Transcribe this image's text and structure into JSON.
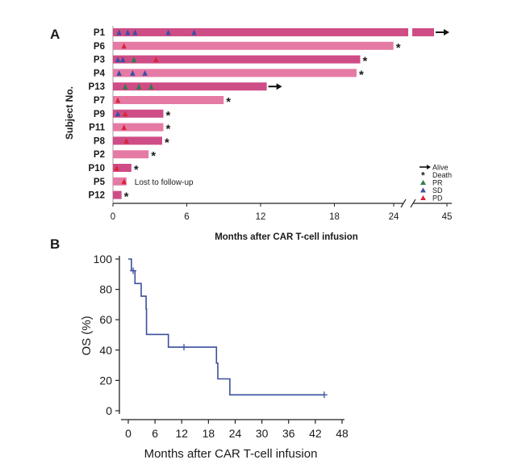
{
  "chart_data": [
    {
      "panel_label": "A",
      "type": "bar",
      "orientation": "horizontal",
      "ylabel": "Subject No.",
      "xlabel": "Months after CAR T-cell infusion",
      "x_ticks": [
        "0",
        "6",
        "12",
        "18",
        "24",
        "45"
      ],
      "axis_break": {
        "after": 24,
        "resumes_at": 45
      },
      "subjects": [
        {
          "id": "P1",
          "months": 44,
          "status": "alive",
          "responses": [
            {
              "t": 0.5,
              "type": "SD"
            },
            {
              "t": 1.2,
              "type": "SD"
            },
            {
              "t": 1.8,
              "type": "SD"
            },
            {
              "t": 4.5,
              "type": "SD"
            },
            {
              "t": 6.6,
              "type": "SD"
            }
          ]
        },
        {
          "id": "P6",
          "months": 22.8,
          "status": "death",
          "responses": [
            {
              "t": 0.9,
              "type": "PD"
            }
          ]
        },
        {
          "id": "P3",
          "months": 20.1,
          "status": "death",
          "responses": [
            {
              "t": 0.4,
              "type": "SD"
            },
            {
              "t": 0.8,
              "type": "SD"
            },
            {
              "t": 1.7,
              "type": "PR"
            },
            {
              "t": 3.5,
              "type": "PD"
            }
          ]
        },
        {
          "id": "P4",
          "months": 19.8,
          "status": "death",
          "responses": [
            {
              "t": 0.5,
              "type": "SD"
            },
            {
              "t": 1.6,
              "type": "SD"
            },
            {
              "t": 2.6,
              "type": "SD"
            }
          ]
        },
        {
          "id": "P13",
          "months": 12.5,
          "status": "alive",
          "responses": [
            {
              "t": 1.0,
              "type": "PR"
            },
            {
              "t": 2.1,
              "type": "PR"
            },
            {
              "t": 3.1,
              "type": "PR"
            }
          ]
        },
        {
          "id": "P7",
          "months": 9.0,
          "status": "death",
          "responses": [
            {
              "t": 0.4,
              "type": "PD"
            }
          ]
        },
        {
          "id": "P9",
          "months": 4.1,
          "status": "death",
          "responses": [
            {
              "t": 0.4,
              "type": "SD"
            },
            {
              "t": 1.0,
              "type": "PD"
            }
          ]
        },
        {
          "id": "P11",
          "months": 4.1,
          "status": "death",
          "responses": [
            {
              "t": 0.9,
              "type": "PD"
            }
          ]
        },
        {
          "id": "P8",
          "months": 4.0,
          "status": "death",
          "responses": [
            {
              "t": 1.1,
              "type": "PD"
            }
          ]
        },
        {
          "id": "P2",
          "months": 2.9,
          "status": "death",
          "responses": []
        },
        {
          "id": "P10",
          "months": 1.5,
          "status": "death",
          "responses": [
            {
              "t": 0.3,
              "type": "PD"
            }
          ]
        },
        {
          "id": "P5",
          "months": 1.1,
          "status": "lost",
          "note": "Lost to follow-up",
          "responses": [
            {
              "t": 0.9,
              "type": "PD"
            }
          ]
        },
        {
          "id": "P12",
          "months": 0.7,
          "status": "death",
          "responses": []
        }
      ],
      "legend": [
        {
          "label": "Alive",
          "marker": "arrow"
        },
        {
          "label": "Death",
          "marker": "asterisk"
        },
        {
          "label": "PR",
          "marker": "triangle",
          "color": "#2e7d4f"
        },
        {
          "label": "SD",
          "marker": "triangle",
          "color": "#3b4fa3"
        },
        {
          "label": "PD",
          "marker": "triangle",
          "color": "#d8263a"
        }
      ],
      "colors": {
        "bar_dark": "#cf4d86",
        "bar_light": "#e57aa5"
      }
    },
    {
      "panel_label": "B",
      "type": "line",
      "subtype": "kaplan-meier",
      "xlabel": "Months after CAR T-cell infusion",
      "ylabel": "OS (%)",
      "xlim": [
        0,
        48
      ],
      "ylim": [
        0,
        100
      ],
      "x_ticks": [
        0,
        6,
        12,
        18,
        24,
        30,
        36,
        42,
        48
      ],
      "y_ticks": [
        0,
        20,
        40,
        60,
        80,
        100
      ],
      "steps": [
        [
          0,
          100
        ],
        [
          0.7,
          100
        ],
        [
          0.7,
          92.3
        ],
        [
          1.5,
          92.3
        ],
        [
          1.5,
          83.9
        ],
        [
          2.9,
          83.9
        ],
        [
          2.9,
          75.5
        ],
        [
          4.0,
          75.5
        ],
        [
          4.0,
          67.1
        ],
        [
          4.1,
          67.1
        ],
        [
          4.1,
          50.3
        ],
        [
          9.0,
          50.3
        ],
        [
          9.0,
          41.9
        ],
        [
          19.8,
          41.9
        ],
        [
          19.8,
          31.4
        ],
        [
          20.1,
          31.4
        ],
        [
          20.1,
          21.0
        ],
        [
          22.8,
          21.0
        ],
        [
          22.8,
          10.5
        ],
        [
          44,
          10.5
        ]
      ],
      "censored": [
        [
          1.1,
          92.3
        ],
        [
          12.5,
          41.9
        ],
        [
          44,
          10.5
        ]
      ],
      "line_color": "#3a4f9c"
    }
  ]
}
